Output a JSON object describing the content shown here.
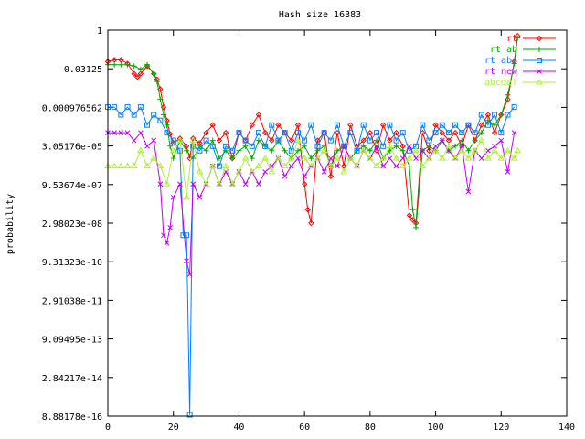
{
  "chart_data": {
    "type": "line",
    "title": "Hash size 16383",
    "xlabel": "",
    "ylabel": "probability",
    "xlim": [
      0,
      140
    ],
    "y_scale": "log",
    "ylim": [
      8.88178e-16,
      1
    ],
    "x_ticks": [
      0,
      20,
      40,
      60,
      80,
      100,
      120,
      140
    ],
    "x_tick_labels": [
      "0",
      "20",
      "40",
      "60",
      "80",
      "100",
      "120",
      "140"
    ],
    "y_ticks": [
      1,
      0.03125,
      0.000976562,
      3.05176e-05,
      9.53674e-07,
      2.98023e-08,
      9.31323e-10,
      2.91038e-11,
      9.09495e-13,
      2.84217e-14,
      8.88178e-16
    ],
    "y_tick_labels": [
      "1",
      "0.03125",
      "0.000976562",
      "3.05176e-05",
      "9.53674e-07",
      "2.98023e-08",
      "9.31323e-10",
      "2.91038e-11",
      "9.09495e-13",
      "2.84217e-14",
      "8.88178e-16"
    ],
    "grid": false,
    "legend_position": "top-right",
    "series": [
      {
        "name": "rt",
        "color": "#ff0000",
        "marker": "diamond",
        "x": [
          0,
          2,
          4,
          6,
          8,
          9,
          10,
          12,
          14,
          15,
          16,
          17,
          18,
          19,
          20,
          22,
          24,
          25,
          26,
          28,
          30,
          32,
          34,
          36,
          38,
          40,
          42,
          44,
          46,
          48,
          50,
          52,
          54,
          56,
          58,
          60,
          61,
          62,
          64,
          66,
          68,
          70,
          72,
          74,
          76,
          78,
          80,
          82,
          84,
          86,
          88,
          90,
          92,
          93,
          94,
          96,
          98,
          100,
          102,
          104,
          106,
          108,
          110,
          112,
          114,
          116,
          118,
          120,
          122,
          124,
          125
        ],
        "y": [
          0.06,
          0.07,
          0.07,
          0.05,
          0.02,
          0.015,
          0.02,
          0.04,
          0.02,
          0.012,
          0.005,
          0.001,
          0.0003,
          9e-05,
          4e-05,
          6e-05,
          3e-05,
          1e-05,
          6e-05,
          4e-05,
          0.0001,
          0.0002,
          5e-05,
          0.0001,
          1e-05,
          0.0001,
          5e-05,
          0.0002,
          0.0005,
          0.0001,
          5e-05,
          0.0002,
          0.0001,
          5e-05,
          0.0002,
          1e-06,
          1e-07,
          3e-08,
          5e-05,
          0.0001,
          2e-06,
          0.0001,
          5e-06,
          0.0002,
          3e-05,
          5e-05,
          0.0001,
          2e-05,
          0.0002,
          5e-05,
          0.0001,
          3e-05,
          6e-08,
          4e-08,
          3e-08,
          0.0001,
          2e-05,
          0.0002,
          0.0001,
          5e-05,
          0.0001,
          3e-05,
          0.0002,
          5e-05,
          0.0002,
          0.0005,
          0.0001,
          0.0005,
          0.002,
          0.06,
          0.6
        ]
      },
      {
        "name": "rt ab",
        "color": "#00aa00",
        "marker": "plus",
        "x": [
          0,
          2,
          4,
          6,
          8,
          10,
          12,
          14,
          15,
          16,
          17,
          18,
          19,
          20,
          22,
          24,
          26,
          28,
          30,
          32,
          34,
          36,
          38,
          40,
          42,
          44,
          46,
          48,
          50,
          52,
          54,
          56,
          58,
          60,
          62,
          64,
          66,
          68,
          70,
          72,
          74,
          76,
          78,
          80,
          82,
          84,
          86,
          88,
          90,
          92,
          93,
          94,
          96,
          98,
          100,
          102,
          104,
          106,
          108,
          110,
          112,
          114,
          116,
          118,
          120,
          122,
          124,
          125
        ],
        "y": [
          0.045,
          0.045,
          0.045,
          0.045,
          0.04,
          0.03,
          0.045,
          0.02,
          0.01,
          0.002,
          0.0005,
          0.0002,
          3e-05,
          1e-05,
          5e-05,
          2e-05,
          1e-05,
          3e-05,
          2e-05,
          5e-05,
          1e-05,
          2e-05,
          1e-05,
          2e-05,
          3e-05,
          1e-05,
          5e-05,
          3e-05,
          2e-05,
          5e-05,
          2e-05,
          1e-05,
          2e-05,
          3e-05,
          1e-05,
          2e-05,
          3e-05,
          5e-06,
          2e-05,
          3e-05,
          1e-05,
          2e-05,
          3e-05,
          2e-05,
          5e-05,
          1e-05,
          2e-05,
          3e-05,
          2e-05,
          5e-06,
          1e-07,
          2e-08,
          2e-05,
          3e-05,
          2e-05,
          5e-05,
          2e-05,
          3e-05,
          5e-05,
          2e-05,
          5e-05,
          0.0001,
          0.0003,
          0.0002,
          0.0005,
          0.003,
          0.05,
          0.5
        ]
      },
      {
        "name": "rt abc",
        "color": "#0080ff",
        "marker": "square",
        "x": [
          0,
          2,
          4,
          6,
          8,
          10,
          12,
          14,
          16,
          18,
          20,
          22,
          23,
          24,
          25,
          26,
          28,
          30,
          32,
          34,
          36,
          38,
          40,
          42,
          44,
          46,
          48,
          50,
          52,
          54,
          56,
          58,
          60,
          62,
          64,
          66,
          68,
          70,
          72,
          74,
          76,
          78,
          80,
          82,
          84,
          86,
          88,
          90,
          92,
          94,
          96,
          98,
          100,
          102,
          104,
          106,
          108,
          110,
          112,
          114,
          116,
          118,
          120,
          122,
          124
        ],
        "y": [
          0.001,
          0.001,
          0.0005,
          0.001,
          0.0005,
          0.001,
          0.0002,
          0.0005,
          0.0003,
          0.0001,
          5e-05,
          2e-05,
          1e-08,
          1e-08,
          1e-15,
          3e-05,
          2e-05,
          5e-05,
          3e-05,
          5e-06,
          3e-05,
          2e-05,
          0.0001,
          5e-05,
          3e-05,
          0.0001,
          3e-05,
          0.0002,
          5e-05,
          0.0001,
          2e-05,
          0.0001,
          5e-05,
          0.0002,
          3e-05,
          0.0001,
          5e-05,
          0.0002,
          3e-05,
          0.0001,
          2e-05,
          0.0002,
          5e-05,
          0.0001,
          3e-05,
          0.0002,
          5e-05,
          0.0001,
          2e-05,
          3e-05,
          0.0002,
          5e-05,
          0.0001,
          0.0002,
          0.0001,
          0.0002,
          0.0001,
          0.0002,
          0.0001,
          0.0005,
          0.0002,
          0.0005,
          0.0001,
          0.0005,
          0.001
        ]
      },
      {
        "name": "rt new",
        "color": "#c000ff",
        "marker": "x",
        "x": [
          0,
          2,
          4,
          6,
          8,
          10,
          12,
          14,
          16,
          17,
          18,
          19,
          20,
          22,
          24,
          25,
          26,
          28,
          30,
          32,
          34,
          36,
          38,
          40,
          42,
          44,
          46,
          48,
          50,
          52,
          54,
          56,
          58,
          60,
          62,
          64,
          66,
          68,
          70,
          72,
          74,
          76,
          78,
          80,
          82,
          84,
          86,
          88,
          90,
          92,
          94,
          96,
          98,
          100,
          102,
          104,
          106,
          108,
          110,
          112,
          114,
          116,
          118,
          120,
          122,
          124
        ],
        "y": [
          0.0001,
          0.0001,
          0.0001,
          0.0001,
          5e-05,
          0.0001,
          3e-05,
          5e-05,
          1e-06,
          1e-08,
          5e-09,
          2e-08,
          3e-07,
          1e-06,
          1e-09,
          3e-10,
          1e-06,
          3e-07,
          1e-06,
          5e-06,
          1e-06,
          3e-06,
          1e-06,
          3e-06,
          1e-06,
          3e-06,
          1e-06,
          3e-06,
          5e-06,
          1e-05,
          2e-06,
          5e-06,
          1e-05,
          2e-06,
          5e-06,
          1e-05,
          3e-06,
          1e-05,
          5e-06,
          3e-05,
          1e-05,
          5e-06,
          2e-05,
          1e-05,
          3e-05,
          5e-06,
          1e-05,
          5e-06,
          1e-05,
          3e-05,
          1e-05,
          2e-05,
          1e-05,
          3e-05,
          5e-05,
          2e-05,
          1e-05,
          3e-05,
          5e-07,
          2e-05,
          1e-05,
          2e-05,
          3e-05,
          5e-05,
          3e-06,
          0.0001
        ]
      },
      {
        "name": "abcdef",
        "color": "#b0f030",
        "marker": "triangle",
        "x": [
          0,
          2,
          4,
          6,
          8,
          10,
          12,
          14,
          16,
          18,
          20,
          22,
          24,
          26,
          28,
          30,
          32,
          34,
          36,
          38,
          40,
          42,
          44,
          46,
          48,
          50,
          52,
          54,
          56,
          58,
          60,
          62,
          64,
          66,
          68,
          70,
          72,
          74,
          76,
          78,
          80,
          82,
          84,
          86,
          88,
          90,
          92,
          94,
          96,
          98,
          100,
          102,
          104,
          106,
          108,
          110,
          112,
          114,
          116,
          118,
          120,
          122,
          124,
          125
        ],
        "y": [
          5e-06,
          5e-06,
          5e-06,
          5e-06,
          5e-06,
          2e-05,
          5e-06,
          1e-05,
          5e-06,
          1e-06,
          2e-05,
          5e-05,
          3e-07,
          5e-05,
          3e-06,
          1e-06,
          5e-06,
          1e-06,
          5e-06,
          1e-06,
          3e-06,
          1e-05,
          3e-06,
          5e-06,
          1e-05,
          3e-06,
          1e-05,
          5e-06,
          1e-05,
          5e-05,
          1e-05,
          5e-06,
          1e-05,
          2e-05,
          5e-06,
          1e-05,
          3e-06,
          1e-05,
          5e-06,
          2e-05,
          1e-05,
          5e-06,
          1e-05,
          3e-05,
          1e-05,
          5e-06,
          1e-05,
          2e-05,
          5e-06,
          1e-05,
          2e-05,
          1e-05,
          3e-05,
          1e-05,
          2e-05,
          1e-05,
          2e-05,
          5e-05,
          1e-05,
          2e-05,
          1e-05,
          2e-05,
          1e-05,
          2e-05
        ]
      }
    ]
  }
}
